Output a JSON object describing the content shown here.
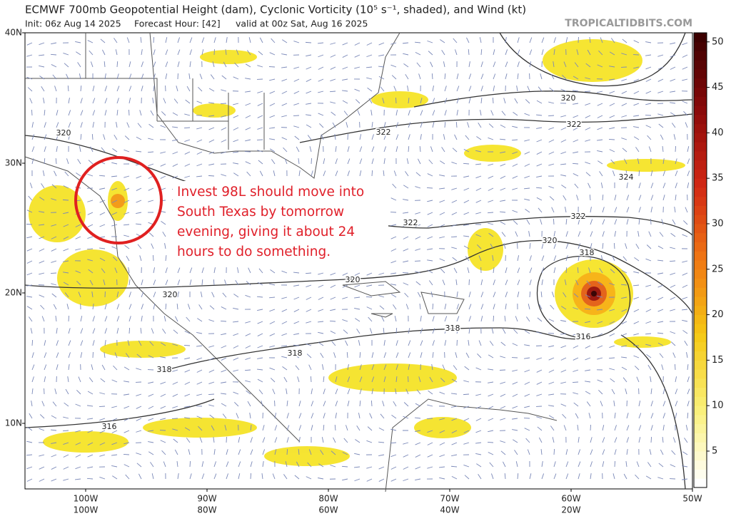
{
  "header": {
    "title": "ECMWF 700mb Geopotential Height (dam), Cyclonic Vorticity (10⁵ s⁻¹, shaded), and Wind (kt)",
    "init": "Init: 06z Aug 14 2025",
    "forecast_hour": "Forecast Hour: [42]",
    "valid": "valid at 00z Sat, Aug 16 2025",
    "site": "TROPICALTIDBITS.COM"
  },
  "map": {
    "lat_labels": [
      "40N",
      "30N",
      "20N",
      "10N"
    ],
    "lon_labels": [
      "100W",
      "90W",
      "80W",
      "70W",
      "60W",
      "50W"
    ],
    "lon_labels_2": [
      "100W",
      "80W",
      "60W",
      "40W",
      "20W"
    ],
    "contour_labels": [
      "320",
      "320",
      "322",
      "322",
      "324",
      "322",
      "322",
      "320",
      "318",
      "320",
      "320",
      "318",
      "316",
      "318",
      "318",
      "316"
    ],
    "annotation": "Invest 98L should move into South Texas by tomorrow evening, giving it about 24 hours to do something."
  },
  "colorbar": {
    "range": [
      1,
      51
    ],
    "ticks": [
      5,
      10,
      15,
      20,
      25,
      30,
      35,
      40,
      45,
      50
    ]
  }
}
